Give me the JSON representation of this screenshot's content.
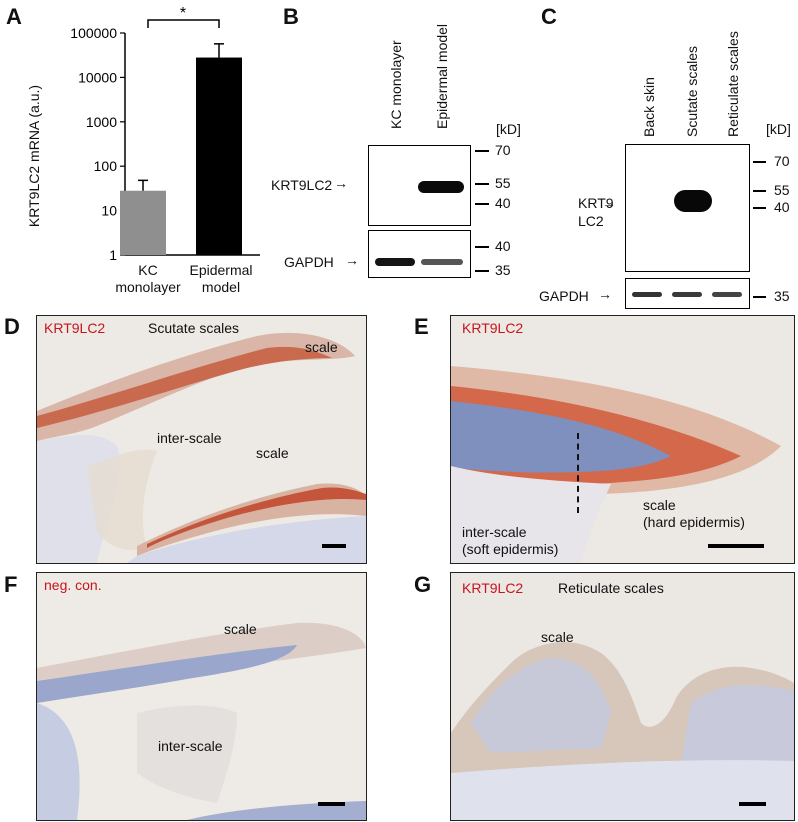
{
  "panels": {
    "A": "A",
    "B": "B",
    "C": "C",
    "D": "D",
    "E": "E",
    "F": "F",
    "G": "G"
  },
  "panelA": {
    "ylabel": "KRT9LC2 mRNA (a.u.)",
    "significance": "*",
    "xticks": [
      {
        "line1": "KC",
        "line2": "monolayer"
      },
      {
        "line1": "Epidermal",
        "line2": "model"
      }
    ],
    "yticks": [
      "100000",
      "10000",
      "1000",
      "100",
      "10",
      "1"
    ]
  },
  "chart_data": {
    "type": "bar",
    "categories": [
      "KC monolayer",
      "Epidermal model"
    ],
    "values": [
      28,
      28000
    ],
    "errors_upper": [
      48,
      57000
    ],
    "ylim": [
      1,
      100000
    ],
    "yscale": "log",
    "ylabel": "KRT9LC2 mRNA (a.u.)",
    "colors": [
      "#8f8f8f",
      "#000000"
    ],
    "annotation": "*"
  },
  "panelB": {
    "lanes": [
      "KC monolayer",
      "Epidermal model"
    ],
    "kd": "[kD]",
    "top_markers": [
      "70",
      "55",
      "40"
    ],
    "bottom_markers": [
      "40",
      "35"
    ],
    "label_top": "KRT9LC2",
    "label_bottom": "GAPDH"
  },
  "panelC": {
    "lanes": [
      "Back skin",
      "Scutate scales",
      "Reticulate scales"
    ],
    "kd": "[kD]",
    "top_markers": [
      "70",
      "55",
      "40"
    ],
    "bottom_markers": [
      "35"
    ],
    "label_top_1": "KRT9",
    "label_top_2": "LC2",
    "label_bottom": "GAPDH"
  },
  "panelD": {
    "stain": "KRT9LC2",
    "title": "Scutate scales",
    "labels": {
      "scale1": "scale",
      "interscale": "inter-scale",
      "scale2": "scale"
    }
  },
  "panelE": {
    "stain": "KRT9LC2",
    "labels": {
      "interscale1": "inter-scale",
      "interscale2": "(soft epidermis)",
      "scale1": "scale",
      "scale2": "(hard epidermis)"
    }
  },
  "panelF": {
    "stain": "neg. con.",
    "labels": {
      "scale": "scale",
      "interscale": "inter-scale"
    }
  },
  "panelG": {
    "stain": "KRT9LC2",
    "title": "Reticulate scales",
    "labels": {
      "scale": "scale"
    }
  },
  "colors": {
    "stain_red": "#c8141e",
    "tissue_bg": "#e9e4de",
    "keratin_red": "#c0442c",
    "hematoxylin": "#7f8fbe"
  }
}
